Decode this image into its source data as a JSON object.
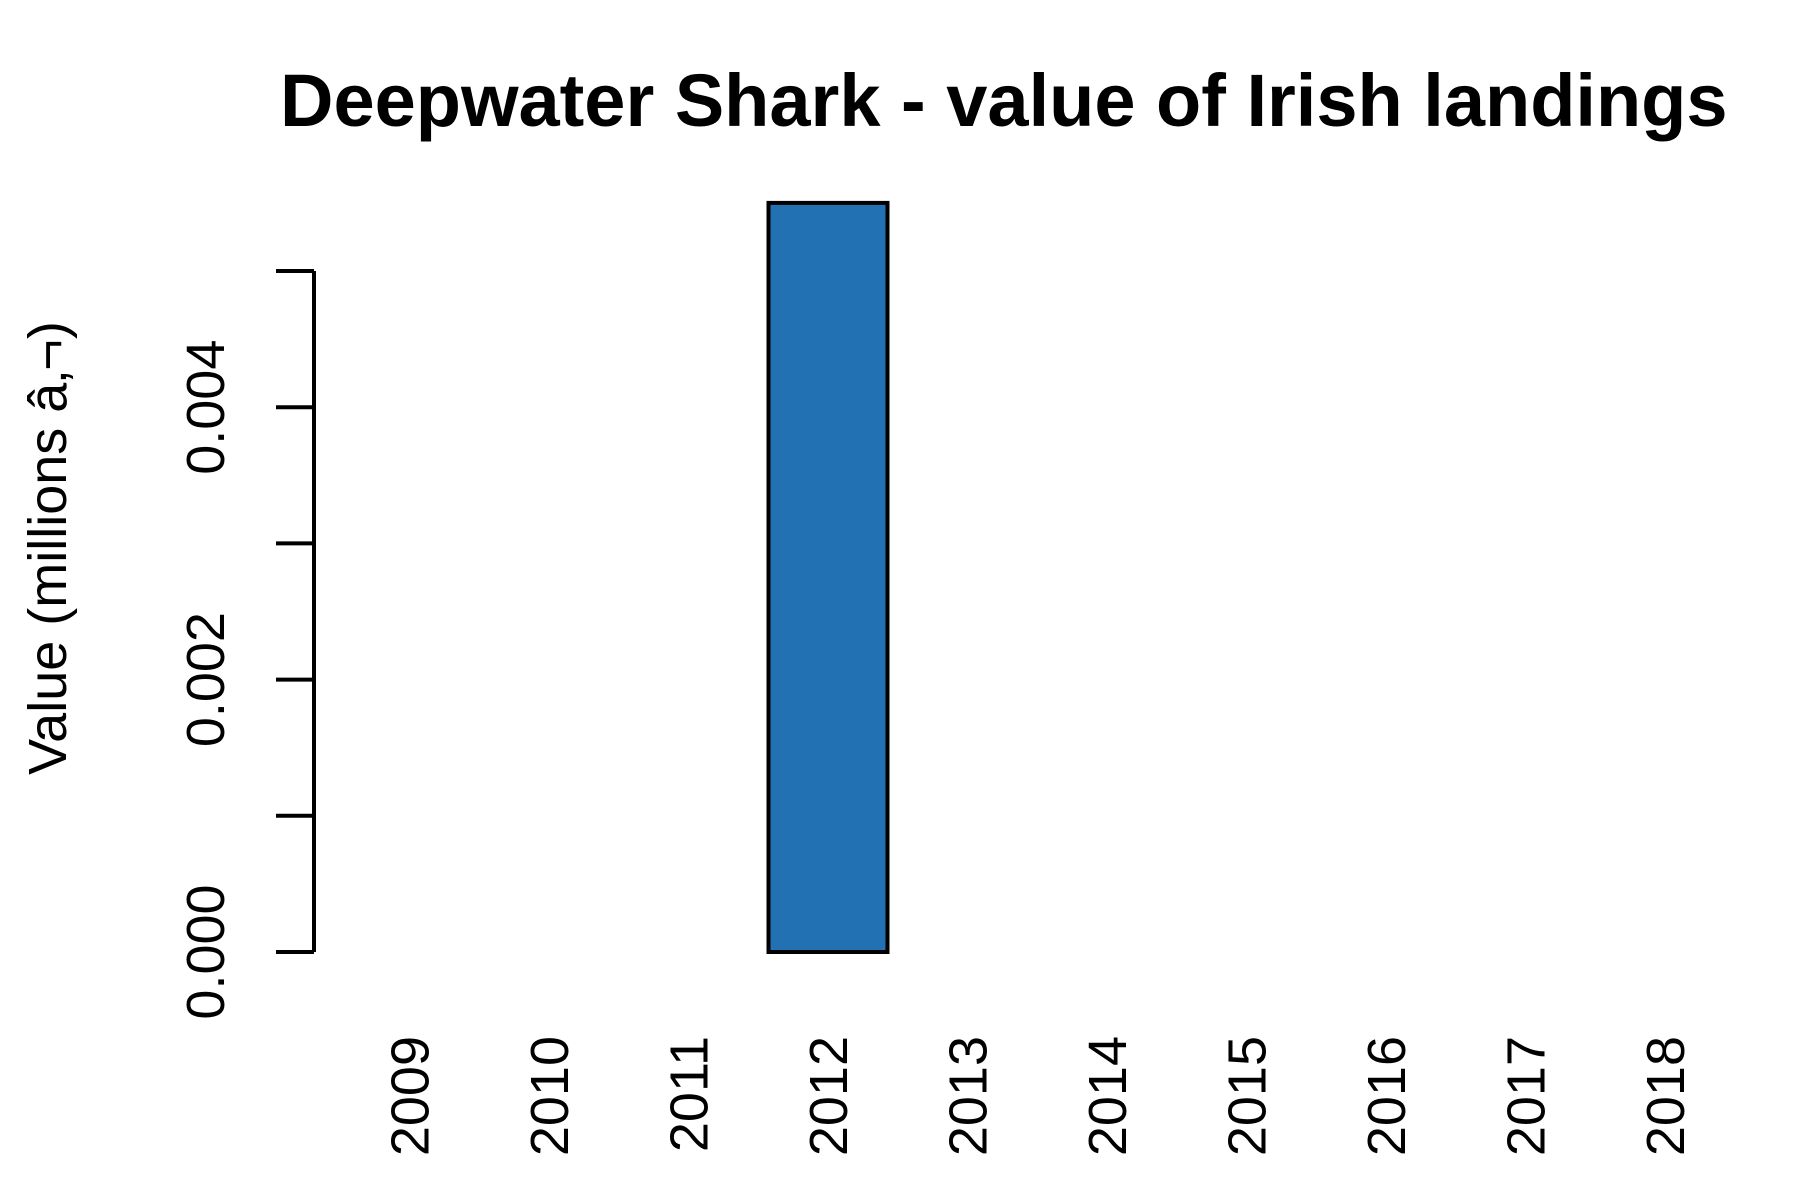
{
  "chart_data": {
    "type": "bar",
    "title": "Deepwater Shark - value of Irish landings",
    "xlabel": "",
    "ylabel": "Value (millions â‚¬)",
    "categories": [
      "2009",
      "2010",
      "2011",
      "2012",
      "2013",
      "2014",
      "2015",
      "2016",
      "2017",
      "2018"
    ],
    "values": [
      0,
      0,
      0,
      0.0055,
      0,
      0,
      0,
      0,
      0,
      0
    ],
    "ylim": [
      0,
      0.005
    ],
    "yticks": [
      0,
      0.001,
      0.002,
      0.003,
      0.004,
      0.005
    ],
    "ytick_labels": [
      "0.000",
      "",
      "0.002",
      "",
      "0.004",
      ""
    ],
    "bar_color": "#2271B2",
    "bar_edge_color": "#000000",
    "grid": false,
    "legend": "none"
  }
}
